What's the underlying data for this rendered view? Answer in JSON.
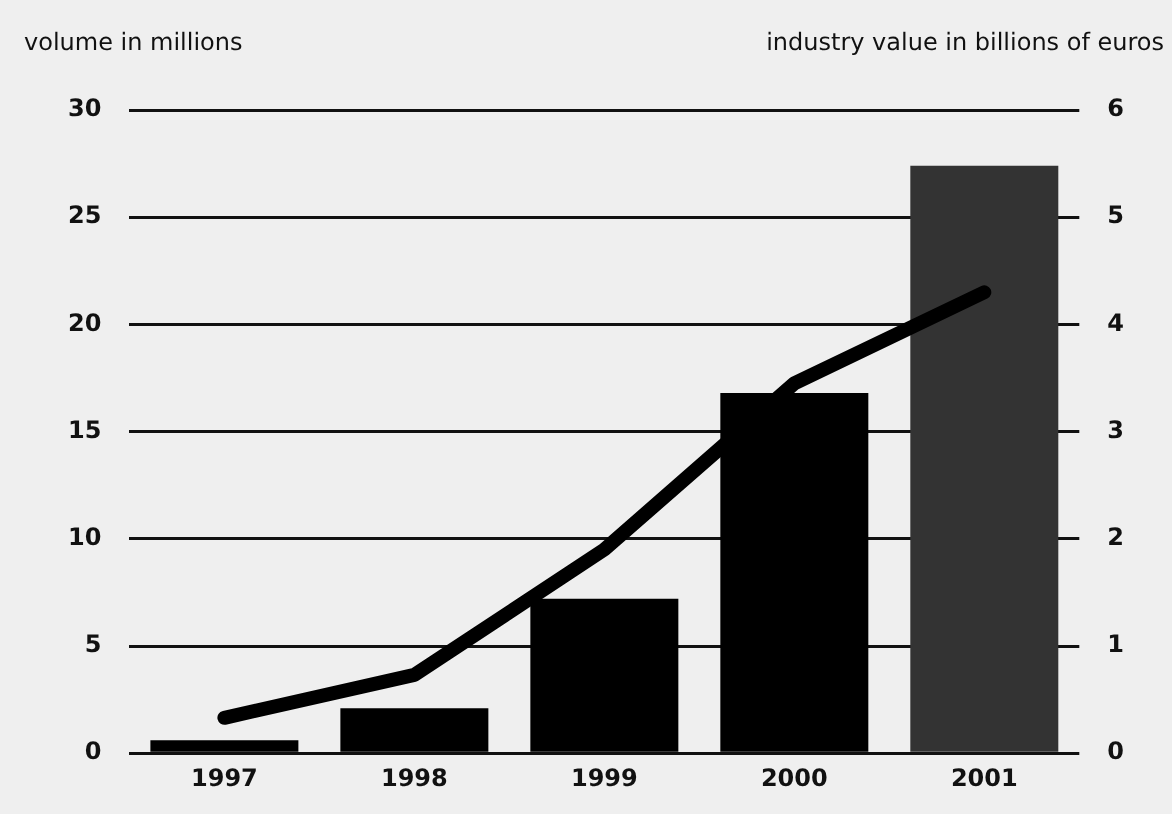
{
  "chart_data": {
    "type": "bar",
    "ylabel": "volume in millions",
    "y2label": "industry value in billions of euros",
    "categories": [
      "1997",
      "1998",
      "1999",
      "2000",
      "2001"
    ],
    "series": [
      {
        "colors": [
          "#000000",
          "#000000",
          "#000000",
          "#000000",
          "#333333"
        ],
        "values": [
          0.6,
          2.1,
          7.2,
          16.8,
          27.4
        ]
      },
      {
        "type": "line",
        "axis": "y2",
        "color": "#000000",
        "values": [
          0.33,
          0.73,
          1.9,
          3.45,
          4.3
        ]
      }
    ],
    "ylim": [
      0,
      30
    ],
    "yticks": [
      0,
      5,
      10,
      15,
      20,
      25,
      30
    ],
    "y2lim": [
      0,
      6
    ],
    "y2ticks": [
      0,
      1,
      2,
      3,
      4,
      5,
      6
    ],
    "grid": "y",
    "marker": "none"
  }
}
